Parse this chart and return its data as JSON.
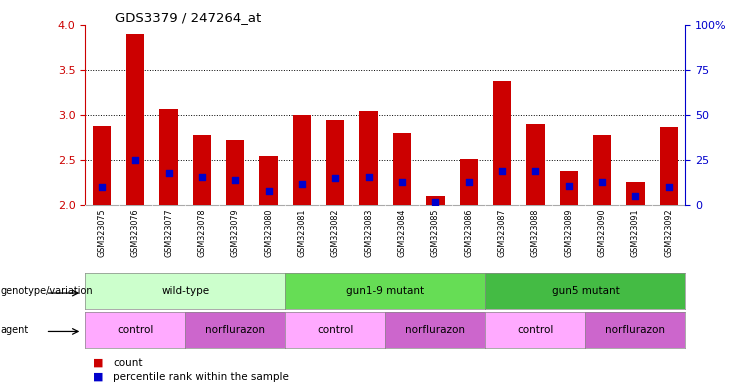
{
  "title": "GDS3379 / 247264_at",
  "samples": [
    "GSM323075",
    "GSM323076",
    "GSM323077",
    "GSM323078",
    "GSM323079",
    "GSM323080",
    "GSM323081",
    "GSM323082",
    "GSM323083",
    "GSM323084",
    "GSM323085",
    "GSM323086",
    "GSM323087",
    "GSM323088",
    "GSM323089",
    "GSM323090",
    "GSM323091",
    "GSM323092"
  ],
  "counts": [
    2.88,
    3.9,
    3.07,
    2.78,
    2.73,
    2.55,
    3.0,
    2.95,
    3.05,
    2.8,
    2.1,
    2.52,
    3.38,
    2.9,
    2.38,
    2.78,
    2.26,
    2.87
  ],
  "percentile_ranks": [
    10,
    25,
    18,
    16,
    14,
    8,
    12,
    15,
    16,
    13,
    2,
    13,
    19,
    19,
    11,
    13,
    5,
    10
  ],
  "ylim_left": [
    2.0,
    4.0
  ],
  "ylim_right": [
    0,
    100
  ],
  "yticks_left": [
    2.0,
    2.5,
    3.0,
    3.5,
    4.0
  ],
  "yticks_right": [
    0,
    25,
    50,
    75,
    100
  ],
  "bar_color": "#cc0000",
  "dot_color": "#0000cc",
  "ax_color_left": "#cc0000",
  "ax_color_right": "#0000cc",
  "genotype_groups": [
    {
      "label": "wild-type",
      "start": 0,
      "end": 5,
      "color": "#ccffcc"
    },
    {
      "label": "gun1-9 mutant",
      "start": 6,
      "end": 11,
      "color": "#66dd55"
    },
    {
      "label": "gun5 mutant",
      "start": 12,
      "end": 17,
      "color": "#44bb44"
    }
  ],
  "agent_groups": [
    {
      "label": "control",
      "start": 0,
      "end": 2,
      "color": "#ffaaff"
    },
    {
      "label": "norflurazon",
      "start": 3,
      "end": 5,
      "color": "#cc66cc"
    },
    {
      "label": "control",
      "start": 6,
      "end": 8,
      "color": "#ffaaff"
    },
    {
      "label": "norflurazon",
      "start": 9,
      "end": 11,
      "color": "#cc66cc"
    },
    {
      "label": "control",
      "start": 12,
      "end": 14,
      "color": "#ffaaff"
    },
    {
      "label": "norflurazon",
      "start": 15,
      "end": 17,
      "color": "#cc66cc"
    }
  ],
  "legend_count_color": "#cc0000",
  "legend_pct_color": "#0000cc",
  "xlabel_genotype": "genotype/variation",
  "xlabel_agent": "agent",
  "tick_bg_color": "#cccccc",
  "yticklabel_left_fontsize": 8,
  "yticklabel_right_fontsize": 8,
  "bar_width": 0.55
}
